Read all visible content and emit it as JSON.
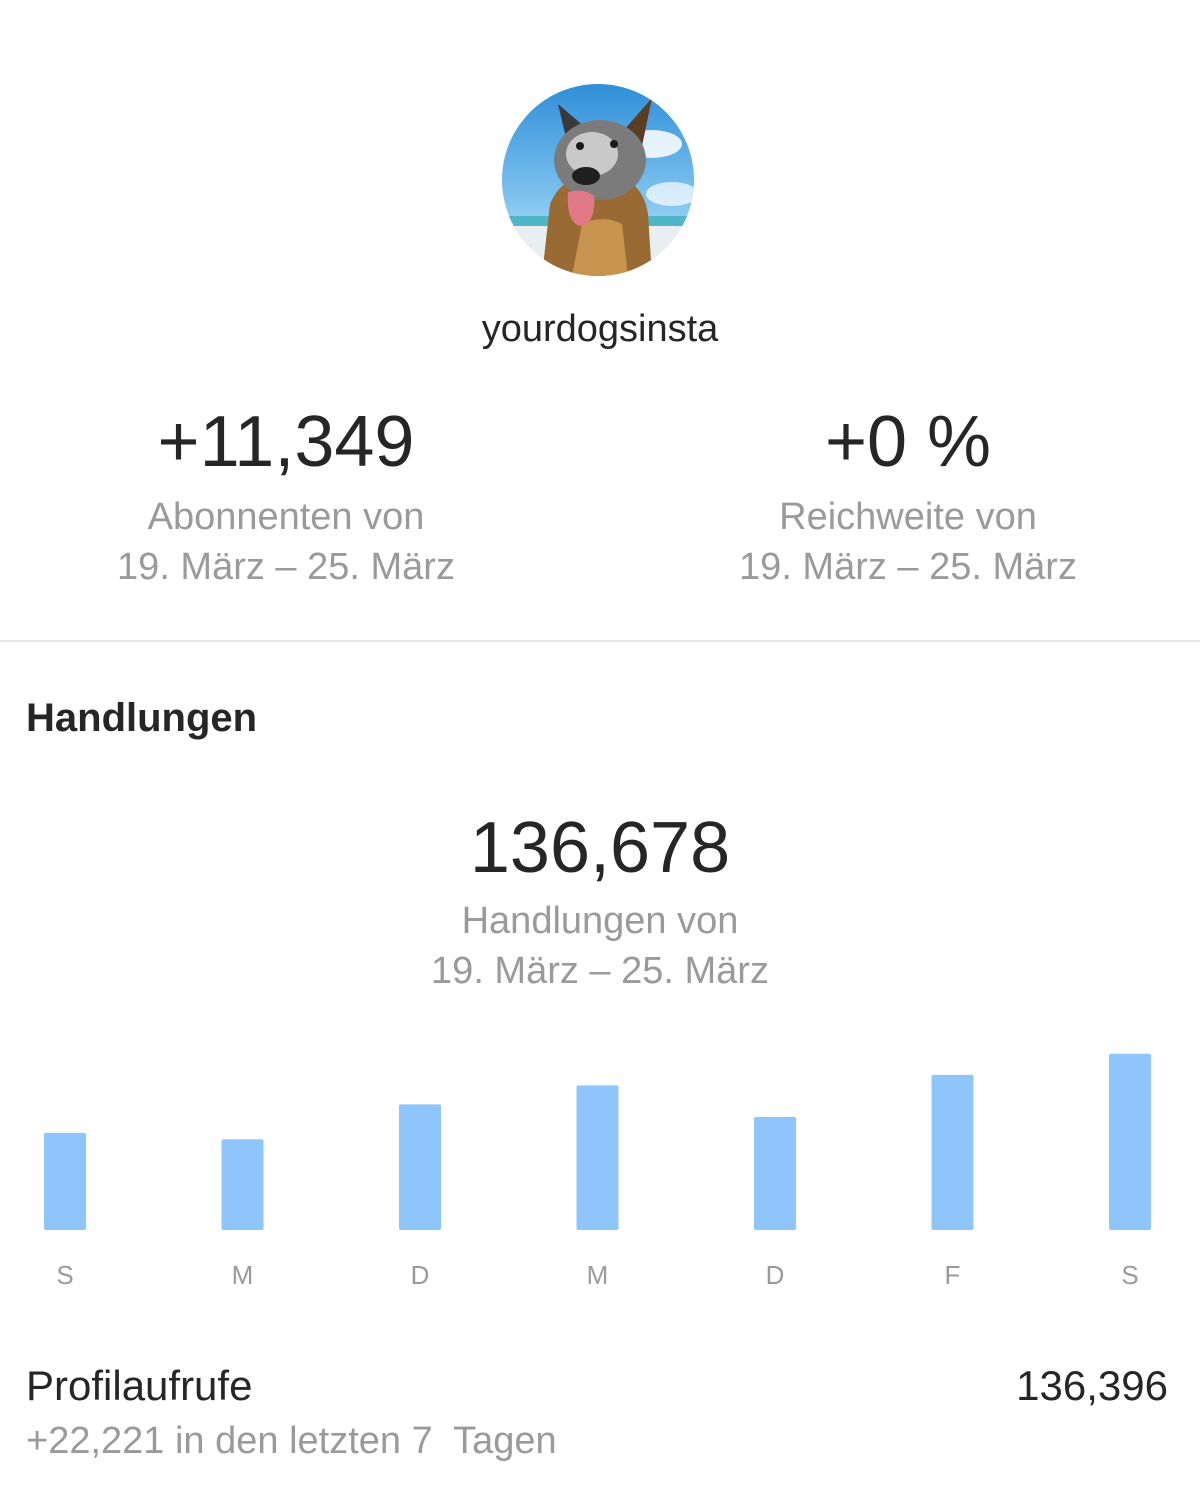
{
  "profile": {
    "username": "yourdogsinsta",
    "avatar_icon": "dog-profile-photo"
  },
  "stats": {
    "followers": {
      "value": "+11,349",
      "label_line1": "Abonnenten von",
      "label_line2": "19. März – 25. März"
    },
    "reach": {
      "value": "+0 %",
      "label_line1": "Reichweite von",
      "label_line2": "19. März – 25. März"
    }
  },
  "actions": {
    "title": "Handlungen",
    "total": "136,678",
    "label_line1": "Handlungen von",
    "label_line2": "19. März – 25. März"
  },
  "chart_data": {
    "type": "bar",
    "categories": [
      "S",
      "M",
      "D",
      "M",
      "D",
      "F",
      "S"
    ],
    "values": [
      92,
      86,
      119,
      137,
      107,
      147,
      167
    ],
    "ylim": [
      0,
      180
    ],
    "bar_color": "#8ec5fa",
    "label_color": "#9a9a9a",
    "grid": false
  },
  "profile_views": {
    "label": "Profilaufrufe",
    "value": "136,396",
    "change": "+22,221 in den letzten 7  Tagen"
  }
}
